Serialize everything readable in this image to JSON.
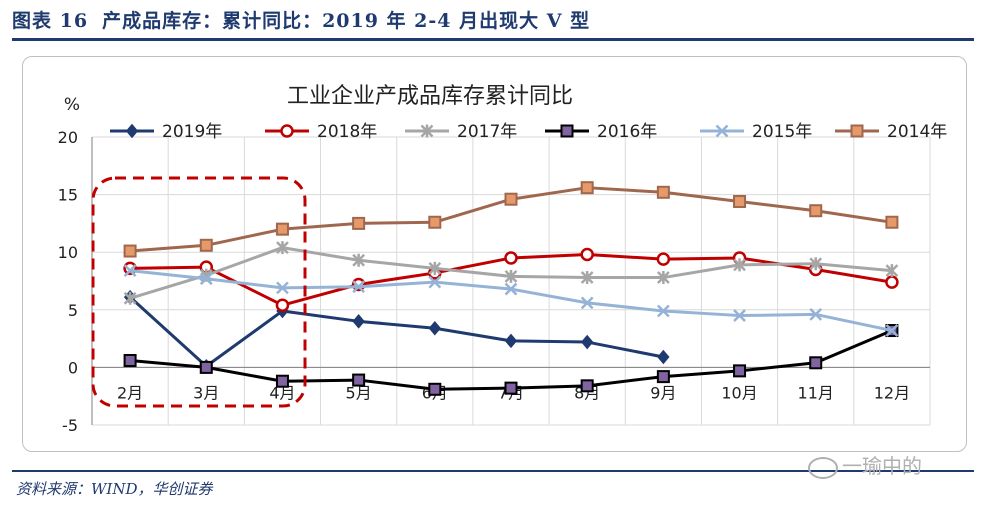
{
  "header": {
    "figure_no": "图表 16",
    "title": "产成品库存：累计同比：2019 年 2-4 月出现大 V 型"
  },
  "source": "资料来源：WIND，华创证券",
  "watermark": "一瑜中的",
  "chart_data": {
    "type": "line",
    "title": "工业企业产成品库存累计同比",
    "ylabel": "%",
    "xlabel": "",
    "ylim": [
      -5,
      20
    ],
    "yticks": [
      -5,
      0,
      5,
      10,
      15,
      20
    ],
    "categories": [
      "2月",
      "3月",
      "4月",
      "5月",
      "6月",
      "7月",
      "8月",
      "9月",
      "10月",
      "11月",
      "12月"
    ],
    "grid": true,
    "legend": "top",
    "annotation": "dashed red box highlighting 2月–4月",
    "series": [
      {
        "name": "2019年",
        "color": "#1f3a6e",
        "marker": "diamond",
        "values": [
          6.1,
          0.1,
          4.9,
          4.0,
          3.4,
          2.3,
          2.2,
          0.9,
          null,
          null,
          null
        ]
      },
      {
        "name": "2018年",
        "color": "#c00000",
        "marker": "circle",
        "values": [
          8.6,
          8.7,
          5.4,
          7.2,
          8.2,
          9.5,
          9.8,
          9.4,
          9.5,
          8.5,
          7.4
        ]
      },
      {
        "name": "2017年",
        "color": "#a6a6a6",
        "marker": "star",
        "values": [
          6.0,
          8.0,
          10.4,
          9.3,
          8.6,
          7.9,
          7.8,
          7.8,
          8.9,
          9.0,
          8.4
        ]
      },
      {
        "name": "2016年",
        "color": "#000000",
        "marker": "square",
        "values": [
          0.6,
          0.0,
          -1.2,
          -1.1,
          -1.9,
          -1.8,
          -1.6,
          -0.8,
          -0.3,
          0.4,
          3.2
        ]
      },
      {
        "name": "2015年",
        "color": "#95b3d7",
        "marker": "x",
        "values": [
          8.4,
          7.7,
          6.9,
          7.0,
          7.4,
          6.8,
          5.6,
          4.9,
          4.5,
          4.6,
          3.2
        ]
      },
      {
        "name": "2014年",
        "color": "#a0674f",
        "marker": "square",
        "values": [
          10.1,
          10.6,
          12.0,
          12.5,
          12.6,
          14.6,
          15.6,
          15.2,
          14.4,
          13.6,
          12.6
        ]
      }
    ]
  }
}
